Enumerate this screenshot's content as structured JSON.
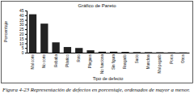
{
  "chart_data": {
    "type": "bar",
    "title": "Gráfico de Pareto",
    "x_label": "Tipo de defecto",
    "y_label": "Porcentaje",
    "caption": "Figura 4-23 Representación de defectos en porcentaje, ordenados de mayor a menor.",
    "categories": [
      "Mal corte",
      "No corte",
      "Rebaba",
      "Plástico",
      "Roto",
      "Pliegues",
      "No funciona",
      "Sin figura",
      "Rasgado",
      "Sucio",
      "Manchas",
      "Mal pegado",
      "Poros",
      "Otros"
    ],
    "values": [
      41,
      31,
      11,
      6,
      5,
      2.5,
      1,
      1,
      0.8,
      0.6,
      0.5,
      0.4,
      0.3,
      0.2
    ],
    "color": "#222222",
    "ylim": [
      0,
      45
    ],
    "yticks": [
      0,
      5,
      10,
      15,
      20,
      25,
      30,
      35,
      40,
      45
    ],
    "grid": false
  }
}
